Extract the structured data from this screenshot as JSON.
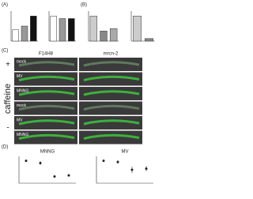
{
  "panels": {
    "a": "(A)",
    "b": "(B)",
    "c": "(C)",
    "d": "(D)"
  },
  "bar_charts": [
    {
      "ylim": [
        0,
        1.2
      ],
      "values": [
        0.45,
        0.6,
        1.0
      ],
      "colors": [
        "#ffffff",
        "#999999",
        "#111111"
      ]
    },
    {
      "ylim": [
        0,
        1.2
      ],
      "values": [
        1.0,
        0.9,
        0.9
      ],
      "colors": [
        "#ffffff",
        "#999999",
        "#111111"
      ]
    },
    {
      "ylim": [
        0,
        1.2
      ],
      "values": [
        1.0,
        0.4,
        0.5
      ],
      "colors": [
        "#cccccc",
        "#888888",
        "#aaaaaa"
      ]
    },
    {
      "ylim": [
        0,
        1.2
      ],
      "values": [
        1.0,
        0.1
      ],
      "colors": [
        "#cccccc",
        "#888888"
      ]
    }
  ],
  "panel_c": {
    "side_label": "caffeine",
    "plus": "+",
    "minus": "-",
    "columns": [
      "F14H8",
      "mrcn-2"
    ],
    "rows": [
      "mock",
      "MV",
      "MNNG",
      "mock",
      "MV",
      "MNNG"
    ]
  },
  "point_charts": [
    {
      "title": "MNNG",
      "ylim": [
        0,
        1.2
      ],
      "values": [
        1.0,
        0.9,
        0.3,
        0.35
      ],
      "errors": [
        0.05,
        0.08,
        0.05,
        0.06
      ]
    },
    {
      "title": "MV",
      "ylim": [
        0,
        1.2
      ],
      "values": [
        1.0,
        0.95,
        0.6,
        0.65
      ],
      "errors": [
        0.05,
        0.08,
        0.15,
        0.12
      ]
    }
  ]
}
